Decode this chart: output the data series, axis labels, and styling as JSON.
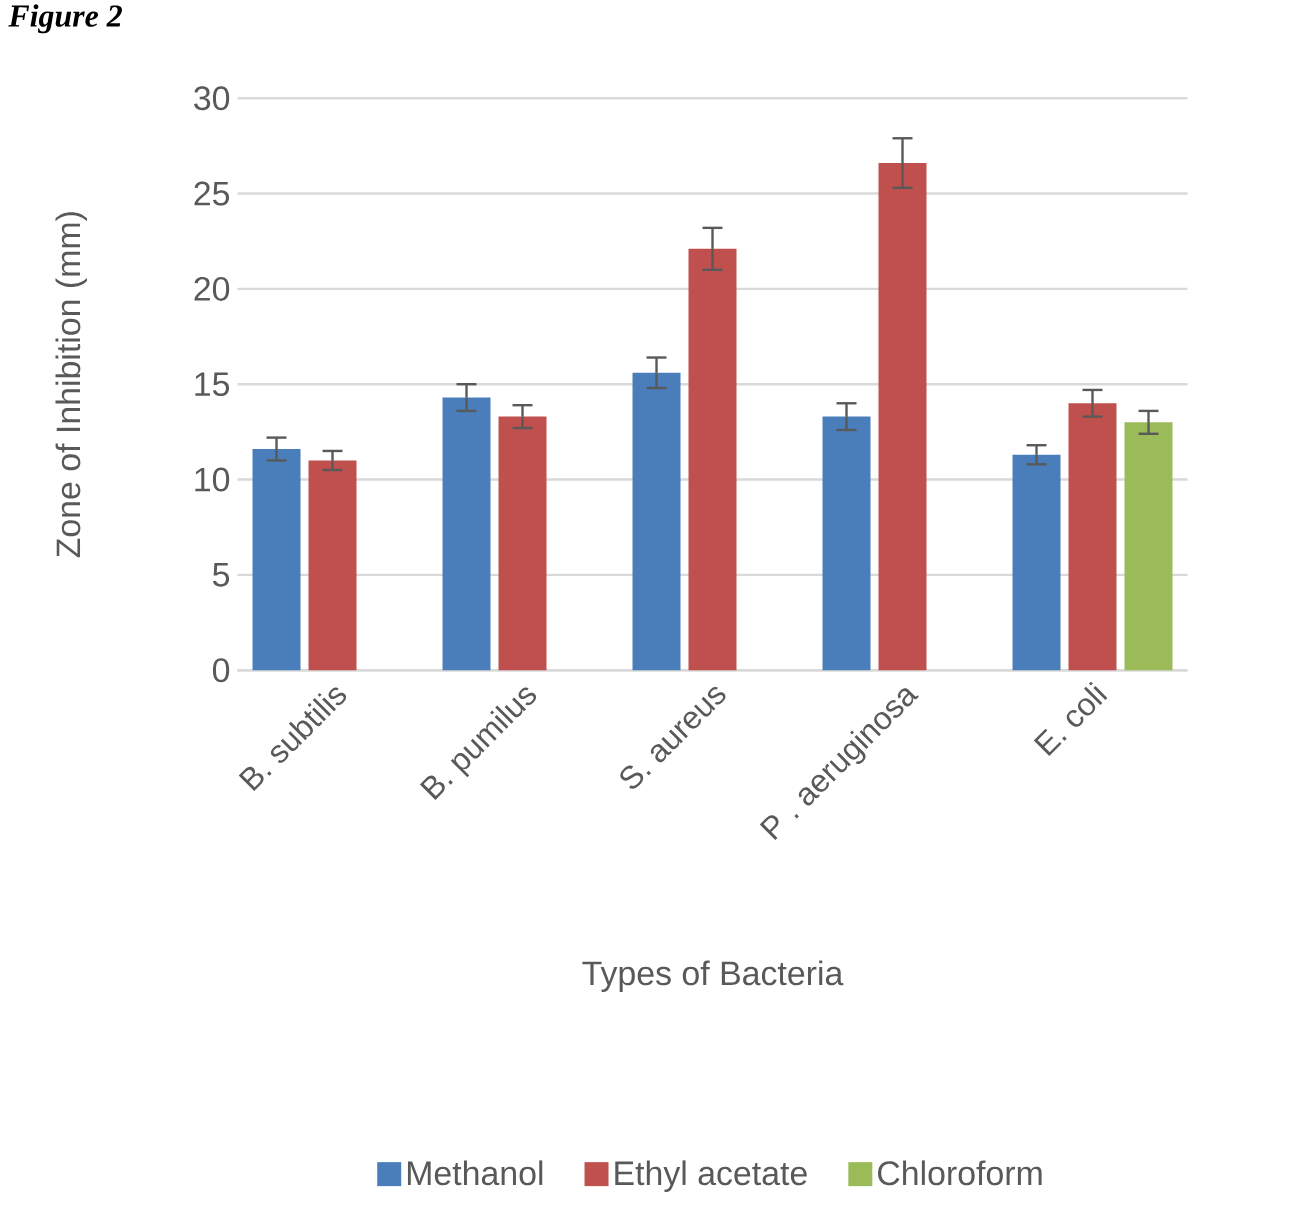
{
  "chart_data": {
    "type": "bar",
    "title": "Figure 2",
    "xlabel": "Types of Bacteria",
    "ylabel": "Zone of Inhibition (mm)",
    "categories": [
      "B. subtilis",
      "B. pumilus",
      "S. aureus",
      "P . aeruginosa",
      "E. coli"
    ],
    "series": [
      {
        "name": "Methanol",
        "color": "#4a7ebb",
        "values": [
          11.6,
          14.3,
          15.6,
          13.3,
          11.3
        ],
        "errors": [
          0.6,
          0.7,
          0.8,
          0.7,
          0.5
        ]
      },
      {
        "name": "Ethyl acetate",
        "color": "#c0504d",
        "values": [
          11.0,
          13.3,
          22.1,
          26.6,
          14.0
        ],
        "errors": [
          0.5,
          0.6,
          1.1,
          1.3,
          0.7
        ]
      },
      {
        "name": "Chloroform",
        "color": "#9bbb59",
        "values": [
          null,
          null,
          null,
          null,
          13.0
        ],
        "errors": [
          null,
          null,
          null,
          null,
          0.6
        ]
      }
    ],
    "ylim": [
      0,
      30
    ],
    "yticks": [
      0,
      5,
      10,
      15,
      20,
      25,
      30
    ],
    "grid": "y",
    "legend": "bottom"
  }
}
